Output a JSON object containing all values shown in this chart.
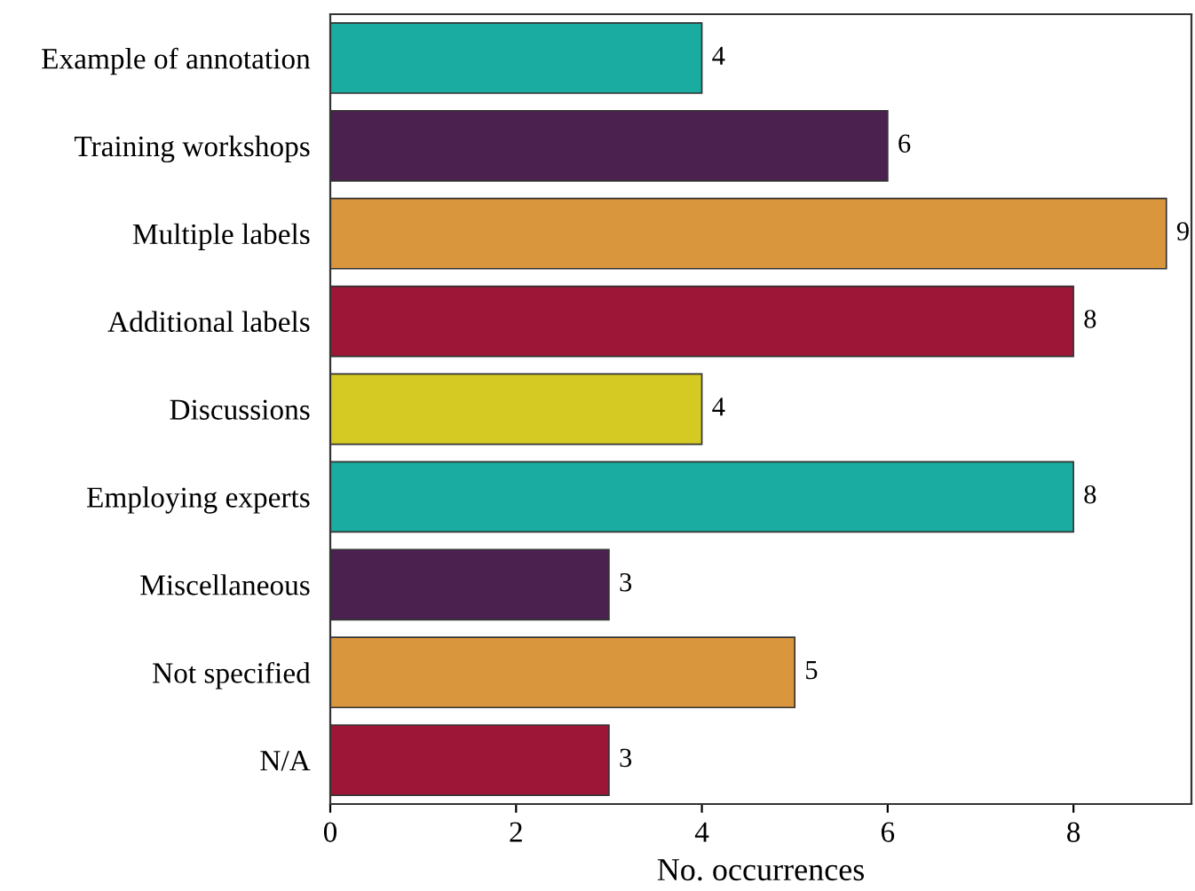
{
  "chart_data": {
    "type": "bar",
    "orientation": "horizontal",
    "xlabel": "No. occurrences",
    "categories": [
      "Example of annotation",
      "Training workshops",
      "Multiple labels",
      "Additional labels",
      "Discussions",
      "Employing experts",
      "Miscellaneous",
      "Not specified",
      "N/A"
    ],
    "values": [
      4,
      6,
      9,
      8,
      4,
      8,
      3,
      5,
      3
    ],
    "colors": [
      "#1aaca0",
      "#4b2150",
      "#da963c",
      "#9e1637",
      "#d5c923",
      "#1aaca0",
      "#4b2150",
      "#da963c",
      "#9e1637"
    ],
    "xlim": [
      0,
      9.27
    ],
    "xticks": [
      0,
      2,
      4,
      6,
      8
    ],
    "data_labels": true,
    "grid": false,
    "legend": false
  }
}
